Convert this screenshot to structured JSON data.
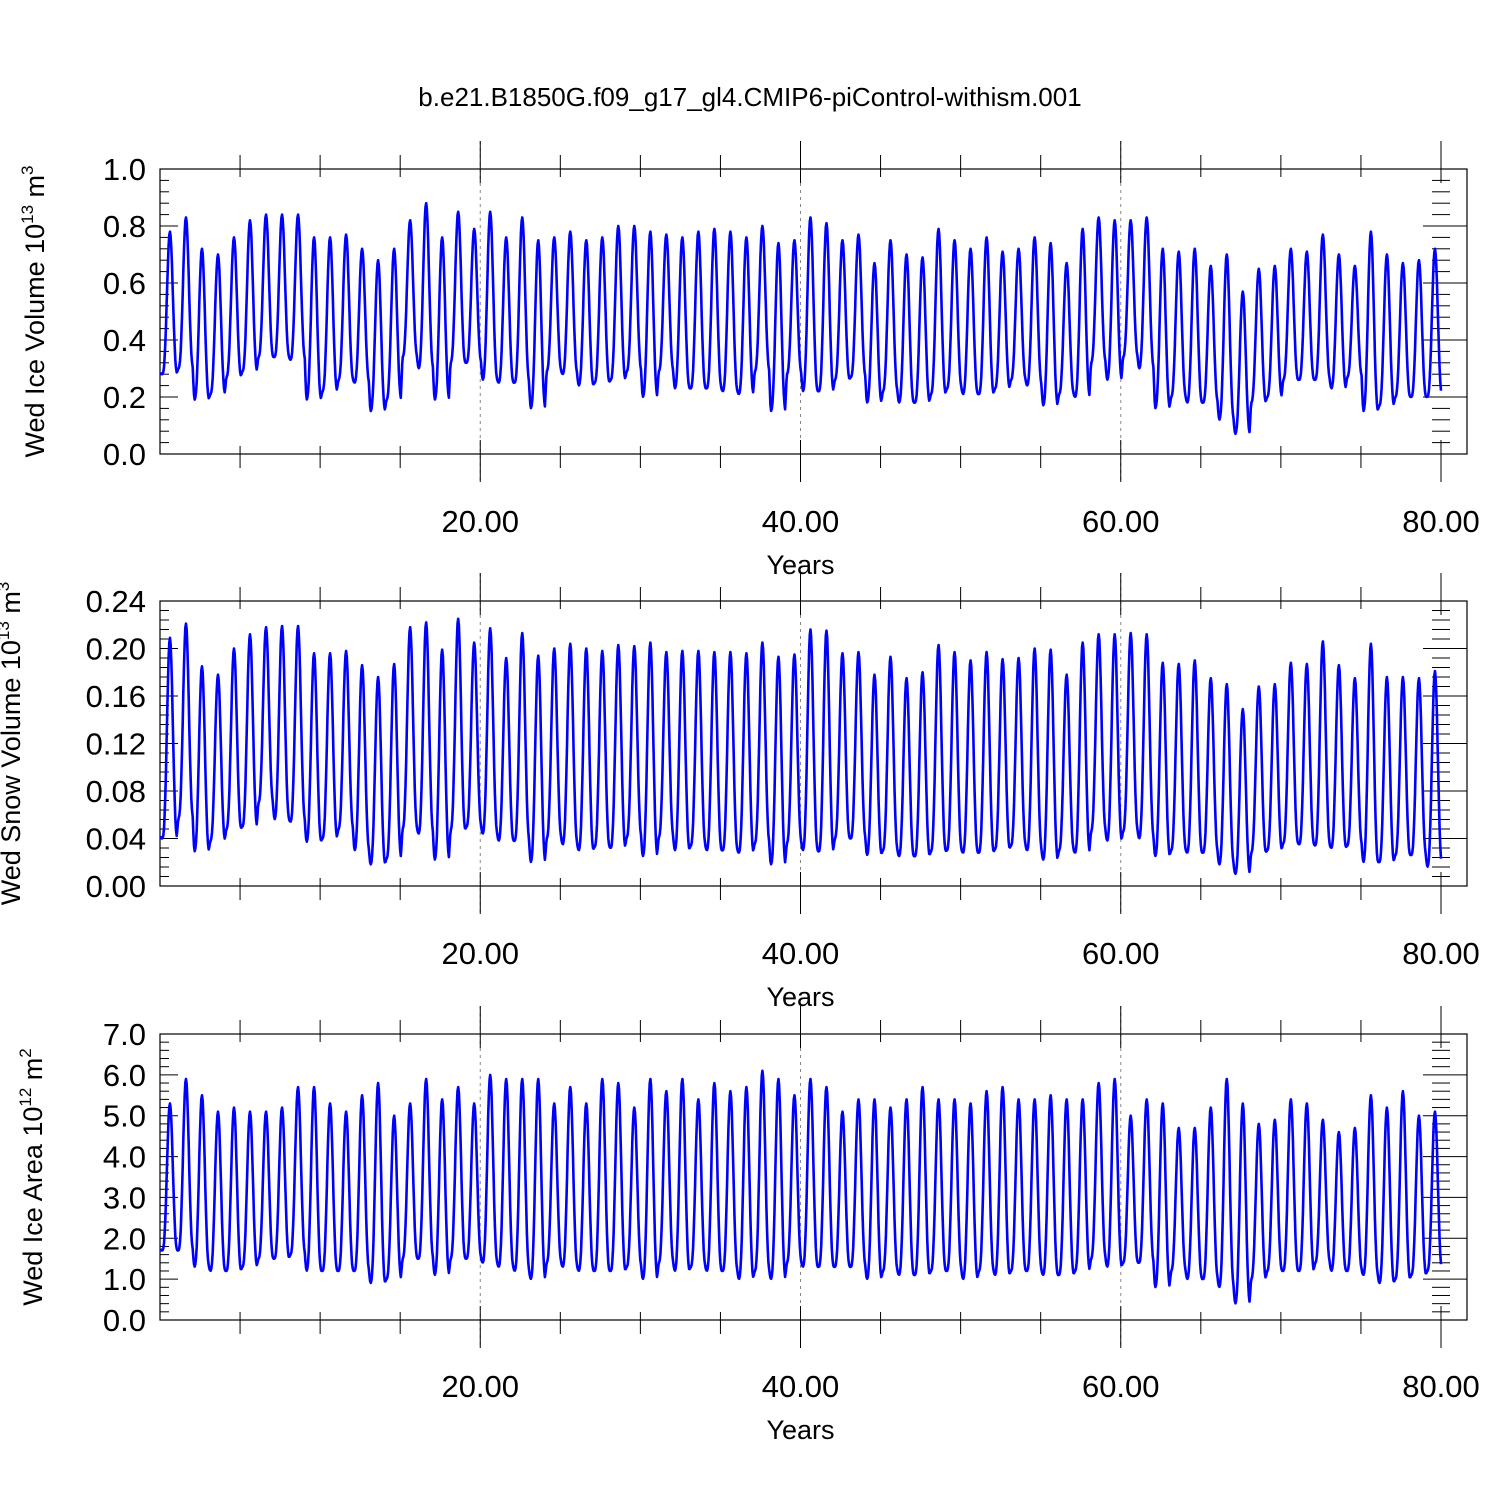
{
  "title": "b.e21.B1850G.f09_g17_gl4.CMIP6-piControl-withism.001",
  "colors": {
    "series": "#0000ff",
    "axis": "#000000",
    "gridline": "#888888"
  },
  "chart_data": [
    {
      "type": "line",
      "title": "b.e21.B1850G.f09_g17_gl4.CMIP6-piControl-withism.001",
      "xlabel": "Years",
      "ylabel": {
        "text": "Wed Ice Volume 10",
        "sup": "13",
        "unit": " m",
        "unit_sup": "3"
      },
      "xlim": [
        0,
        80
      ],
      "ylim": [
        0,
        1.0
      ],
      "x_ticks": [
        20,
        40,
        60,
        80
      ],
      "x_tick_labels": [
        "20.00",
        "40.00",
        "60.00",
        "80.00"
      ],
      "y_ticks": [
        0,
        0.2,
        0.4,
        0.6,
        0.8,
        1.0
      ],
      "y_tick_labels": [
        "0.0",
        "0.2",
        "0.4",
        "0.6",
        "0.8",
        "1.0"
      ],
      "grid": "dashed vertical at 20, 40, 60",
      "series": [
        {
          "name": "",
          "x_start": 0.04,
          "x_step": 1,
          "peaks": [
            0.78,
            0.83,
            0.72,
            0.7,
            0.76,
            0.82,
            0.84,
            0.84,
            0.84,
            0.76,
            0.76,
            0.77,
            0.72,
            0.68,
            0.72,
            0.82,
            0.88,
            0.76,
            0.85,
            0.79,
            0.85,
            0.76,
            0.83,
            0.75,
            0.76,
            0.78,
            0.75,
            0.76,
            0.8,
            0.8,
            0.78,
            0.77,
            0.76,
            0.78,
            0.79,
            0.78,
            0.76,
            0.8,
            0.74,
            0.75,
            0.83,
            0.81,
            0.75,
            0.77,
            0.67,
            0.75,
            0.7,
            0.69,
            0.79,
            0.75,
            0.72,
            0.76,
            0.71,
            0.72,
            0.76,
            0.74,
            0.67,
            0.79,
            0.83,
            0.82,
            0.82,
            0.83,
            0.72,
            0.71,
            0.72,
            0.66,
            0.7,
            0.57,
            0.65,
            0.66,
            0.72,
            0.71,
            0.77,
            0.7,
            0.66,
            0.78,
            0.7,
            0.67,
            0.68,
            0.72
          ],
          "troughs": [
            0.28,
            0.3,
            0.19,
            0.21,
            0.27,
            0.29,
            0.34,
            0.34,
            0.33,
            0.19,
            0.22,
            0.26,
            0.25,
            0.15,
            0.19,
            0.34,
            0.3,
            0.19,
            0.32,
            0.32,
            0.26,
            0.25,
            0.25,
            0.16,
            0.29,
            0.28,
            0.24,
            0.25,
            0.26,
            0.29,
            0.2,
            0.29,
            0.23,
            0.23,
            0.23,
            0.22,
            0.21,
            0.29,
            0.15,
            0.28,
            0.22,
            0.22,
            0.26,
            0.27,
            0.18,
            0.22,
            0.18,
            0.18,
            0.21,
            0.23,
            0.21,
            0.21,
            0.23,
            0.26,
            0.24,
            0.17,
            0.21,
            0.2,
            0.32,
            0.26,
            0.34,
            0.3,
            0.16,
            0.2,
            0.18,
            0.18,
            0.12,
            0.07,
            0.18,
            0.2,
            0.26,
            0.26,
            0.26,
            0.23,
            0.27,
            0.15,
            0.17,
            0.2,
            0.2,
            0.2
          ]
        }
      ]
    },
    {
      "type": "line",
      "xlabel": "Years",
      "ylabel": {
        "text": "Wed Snow Volume 10",
        "sup": "13",
        "unit": " m",
        "unit_sup": "3"
      },
      "xlim": [
        0,
        80
      ],
      "ylim": [
        0,
        0.24
      ],
      "x_ticks": [
        20,
        40,
        60,
        80
      ],
      "x_tick_labels": [
        "20.00",
        "40.00",
        "60.00",
        "80.00"
      ],
      "y_ticks": [
        0,
        0.04,
        0.08,
        0.12,
        0.16,
        0.2,
        0.24
      ],
      "y_tick_labels": [
        "0.00",
        "0.04",
        "0.08",
        "0.12",
        "0.16",
        "0.20",
        "0.24"
      ],
      "grid": "dashed vertical at 20, 40, 60",
      "series": [
        {
          "name": "",
          "x_start": 0.04,
          "x_step": 1,
          "peaks": [
            0.209,
            0.221,
            0.185,
            0.178,
            0.2,
            0.212,
            0.218,
            0.219,
            0.219,
            0.196,
            0.196,
            0.198,
            0.186,
            0.176,
            0.187,
            0.218,
            0.222,
            0.199,
            0.225,
            0.205,
            0.217,
            0.192,
            0.213,
            0.194,
            0.2,
            0.204,
            0.2,
            0.198,
            0.203,
            0.202,
            0.205,
            0.197,
            0.198,
            0.198,
            0.197,
            0.197,
            0.196,
            0.205,
            0.193,
            0.195,
            0.216,
            0.215,
            0.196,
            0.197,
            0.178,
            0.193,
            0.175,
            0.18,
            0.203,
            0.197,
            0.19,
            0.197,
            0.191,
            0.192,
            0.2,
            0.199,
            0.178,
            0.205,
            0.212,
            0.212,
            0.213,
            0.212,
            0.188,
            0.187,
            0.19,
            0.175,
            0.17,
            0.149,
            0.168,
            0.17,
            0.188,
            0.187,
            0.206,
            0.186,
            0.175,
            0.204,
            0.176,
            0.176,
            0.175,
            0.181
          ],
          "troughs": [
            0.04,
            0.057,
            0.029,
            0.038,
            0.048,
            0.05,
            0.07,
            0.056,
            0.054,
            0.037,
            0.04,
            0.048,
            0.03,
            0.018,
            0.023,
            0.048,
            0.044,
            0.022,
            0.047,
            0.05,
            0.044,
            0.038,
            0.038,
            0.02,
            0.04,
            0.035,
            0.03,
            0.033,
            0.032,
            0.041,
            0.025,
            0.041,
            0.03,
            0.034,
            0.03,
            0.03,
            0.028,
            0.036,
            0.018,
            0.036,
            0.03,
            0.029,
            0.04,
            0.04,
            0.026,
            0.03,
            0.025,
            0.025,
            0.029,
            0.03,
            0.028,
            0.028,
            0.031,
            0.034,
            0.03,
            0.022,
            0.03,
            0.028,
            0.046,
            0.038,
            0.046,
            0.04,
            0.025,
            0.03,
            0.028,
            0.028,
            0.018,
            0.01,
            0.028,
            0.03,
            0.036,
            0.035,
            0.034,
            0.032,
            0.034,
            0.02,
            0.02,
            0.026,
            0.026,
            0.016
          ]
        }
      ]
    },
    {
      "type": "line",
      "xlabel": "Years",
      "ylabel": {
        "text": "Wed Ice Area 10",
        "sup": "12",
        "unit": " m",
        "unit_sup": "2"
      },
      "xlim": [
        0,
        80
      ],
      "ylim": [
        0,
        7.0
      ],
      "x_ticks": [
        20,
        40,
        60,
        80
      ],
      "x_tick_labels": [
        "20.00",
        "40.00",
        "60.00",
        "80.00"
      ],
      "y_ticks": [
        0,
        1,
        2,
        3,
        4,
        5,
        6,
        7
      ],
      "y_tick_labels": [
        "0.0",
        "1.0",
        "2.0",
        "3.0",
        "4.0",
        "5.0",
        "6.0",
        "7.0"
      ],
      "grid": "dashed vertical at 20, 40, 60",
      "series": [
        {
          "name": "",
          "x_start": 0.04,
          "x_step": 1,
          "peaks": [
            5.3,
            5.9,
            5.5,
            5.1,
            5.2,
            5.1,
            5.1,
            5.2,
            5.7,
            5.7,
            5.3,
            5.1,
            5.5,
            5.8,
            5.0,
            5.3,
            5.9,
            5.4,
            5.7,
            5.3,
            6.0,
            5.9,
            5.9,
            5.9,
            5.3,
            5.7,
            5.3,
            5.9,
            5.8,
            5.2,
            5.9,
            5.6,
            5.9,
            5.4,
            5.8,
            5.6,
            5.7,
            6.1,
            5.9,
            5.5,
            5.9,
            5.7,
            5.1,
            5.4,
            5.4,
            5.2,
            5.4,
            5.7,
            5.4,
            5.4,
            5.3,
            5.6,
            5.7,
            5.4,
            5.4,
            5.5,
            5.4,
            5.4,
            5.8,
            5.9,
            5.0,
            5.4,
            5.3,
            4.7,
            4.7,
            5.2,
            5.9,
            5.3,
            4.8,
            4.9,
            5.4,
            5.3,
            4.9,
            4.6,
            4.7,
            5.5,
            5.2,
            5.6,
            5.0,
            5.1
          ],
          "troughs": [
            1.7,
            1.7,
            1.3,
            1.2,
            1.2,
            1.3,
            1.5,
            1.5,
            1.6,
            1.2,
            1.2,
            1.2,
            1.2,
            0.9,
            1.0,
            1.5,
            1.5,
            1.1,
            1.5,
            1.5,
            1.4,
            1.3,
            1.2,
            1.0,
            1.4,
            1.3,
            1.2,
            1.2,
            1.2,
            1.3,
            1.0,
            1.4,
            1.2,
            1.3,
            1.2,
            1.2,
            1.0,
            1.2,
            1.0,
            1.4,
            1.3,
            1.3,
            1.3,
            1.3,
            1.0,
            1.2,
            1.1,
            1.1,
            1.2,
            1.2,
            1.0,
            1.2,
            1.1,
            1.2,
            1.2,
            1.1,
            1.1,
            1.2,
            1.5,
            1.3,
            1.4,
            1.4,
            0.8,
            1.2,
            1.0,
            1.0,
            0.8,
            0.4,
            1.0,
            1.2,
            1.2,
            1.2,
            1.4,
            1.2,
            1.2,
            1.1,
            0.9,
            1.0,
            1.1,
            1.2
          ]
        }
      ]
    }
  ]
}
